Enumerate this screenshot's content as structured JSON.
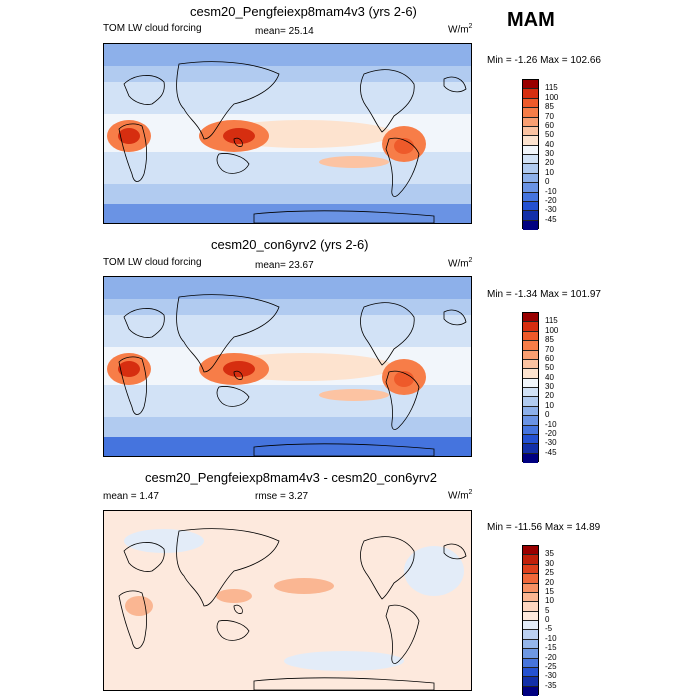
{
  "season": "MAM",
  "panels": [
    {
      "title": "cesm20_Pengfeiexp8mam4v3 (yrs 2-6)",
      "left": "TOM LW cloud forcing",
      "mid": "mean=  25.14",
      "units": "W/m",
      "units_sup": "2",
      "minmax": "Min =  -1.26 Max = 102.66",
      "levels": [
        "115",
        "100",
        "85",
        "70",
        "60",
        "50",
        "40",
        "30",
        "20",
        "10",
        "0",
        "-10",
        "-20",
        "-30",
        "-45"
      ],
      "colors": [
        "#990000",
        "#d62e10",
        "#ee5a2a",
        "#f77d48",
        "#fa9f72",
        "#fcc3a2",
        "#fde3cf",
        "#f2f6fb",
        "#d2e2f6",
        "#b1cbf0",
        "#8db0ea",
        "#6a93e4",
        "#4574de",
        "#2451d1",
        "#1330a8",
        "#000080"
      ]
    },
    {
      "title": "cesm20_con6yrv2 (yrs 2-6)",
      "left": "TOM LW cloud forcing",
      "mid": "mean=  23.67",
      "units": "W/m",
      "units_sup": "2",
      "minmax": "Min =  -1.34 Max = 101.97",
      "levels": [
        "115",
        "100",
        "85",
        "70",
        "60",
        "50",
        "40",
        "30",
        "20",
        "10",
        "0",
        "-10",
        "-20",
        "-30",
        "-45"
      ],
      "colors": [
        "#990000",
        "#d62e10",
        "#ee5a2a",
        "#f77d48",
        "#fa9f72",
        "#fcc3a2",
        "#fde3cf",
        "#f2f6fb",
        "#d2e2f6",
        "#b1cbf0",
        "#8db0ea",
        "#6a93e4",
        "#4574de",
        "#2451d1",
        "#1330a8",
        "#000080"
      ]
    },
    {
      "title": "cesm20_Pengfeiexp8mam4v3 - cesm20_con6yrv2",
      "left": "mean =   1.47",
      "mid": "rmse =   3.27",
      "units": "W/m",
      "units_sup": "2",
      "minmax": "Min = -11.56 Max =  14.89",
      "levels": [
        "35",
        "30",
        "25",
        "20",
        "15",
        "10",
        "5",
        "0",
        "-5",
        "-10",
        "-15",
        "-20",
        "-25",
        "-30",
        "-35"
      ],
      "colors": [
        "#990000",
        "#c0200a",
        "#de401c",
        "#f0683a",
        "#f79164",
        "#fab692",
        "#fdd6c0",
        "#fde9dd",
        "#e3ecf8",
        "#bcd1f1",
        "#95b6ea",
        "#6e98e3",
        "#4775dc",
        "#2552d0",
        "#1330a8",
        "#000080"
      ]
    }
  ]
}
